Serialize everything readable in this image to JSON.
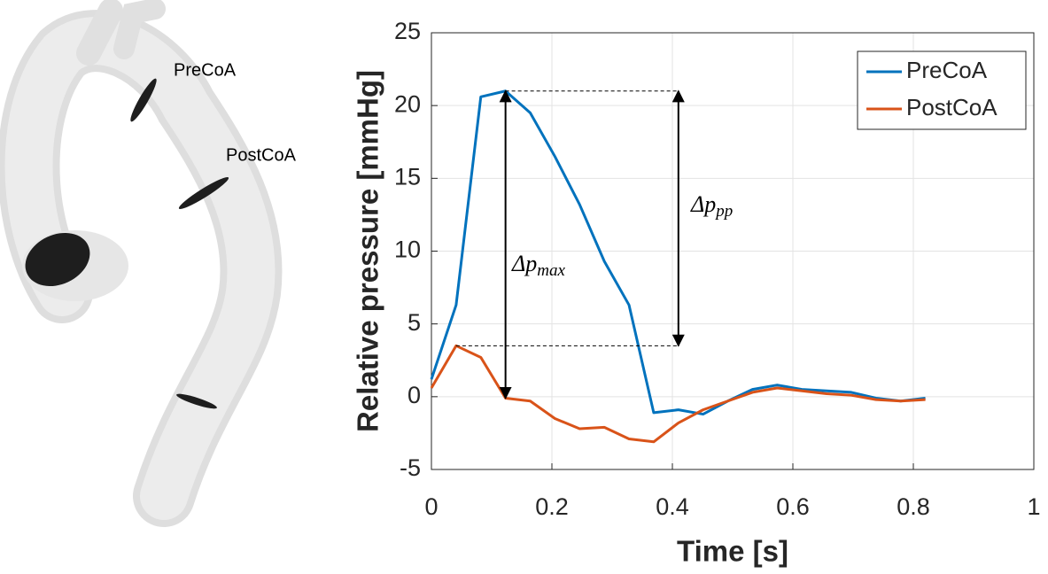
{
  "anatomy_labels": [
    "PreCoA",
    "PostCoA"
  ],
  "chart_data": {
    "type": "line",
    "xlabel": "Time [s]",
    "ylabel": "Relative pressure [mmHg]",
    "x": [
      0,
      0.041,
      0.082,
      0.123,
      0.164,
      0.205,
      0.246,
      0.287,
      0.328,
      0.369,
      0.41,
      0.451,
      0.492,
      0.533,
      0.574,
      0.615,
      0.656,
      0.697,
      0.738,
      0.779,
      0.82
    ],
    "series": [
      {
        "name": "PreCoA",
        "color": "#0072bd",
        "values": [
          1.2,
          6.3,
          20.6,
          21,
          19.5,
          16.5,
          13.2,
          9.3,
          6.3,
          -1.1,
          -0.9,
          -1.2,
          -0.3,
          0.5,
          0.8,
          0.5,
          0.4,
          0.3,
          -0.1,
          -0.3,
          -0.1
        ]
      },
      {
        "name": "PostCoA",
        "color": "#d95319",
        "values": [
          0.6,
          3.5,
          2.7,
          -0.1,
          -0.3,
          -1.5,
          -2.2,
          -2.1,
          -2.9,
          -3.1,
          -1.8,
          -0.9,
          -0.3,
          0.3,
          0.6,
          0.4,
          0.2,
          0.1,
          -0.2,
          -0.3,
          -0.2
        ]
      }
    ],
    "xlim": [
      0,
      1
    ],
    "xticks": [
      0,
      0.2,
      0.4,
      0.6,
      0.8,
      1
    ],
    "ylim": [
      -5,
      25
    ],
    "yticks": [
      -5,
      0,
      5,
      10,
      15,
      20,
      25
    ],
    "grid": true,
    "legend": "upper-right",
    "annotations": [
      {
        "text": "Δp",
        "subscript": "max"
      },
      {
        "text": "Δp",
        "subscript": "pp"
      }
    ]
  }
}
